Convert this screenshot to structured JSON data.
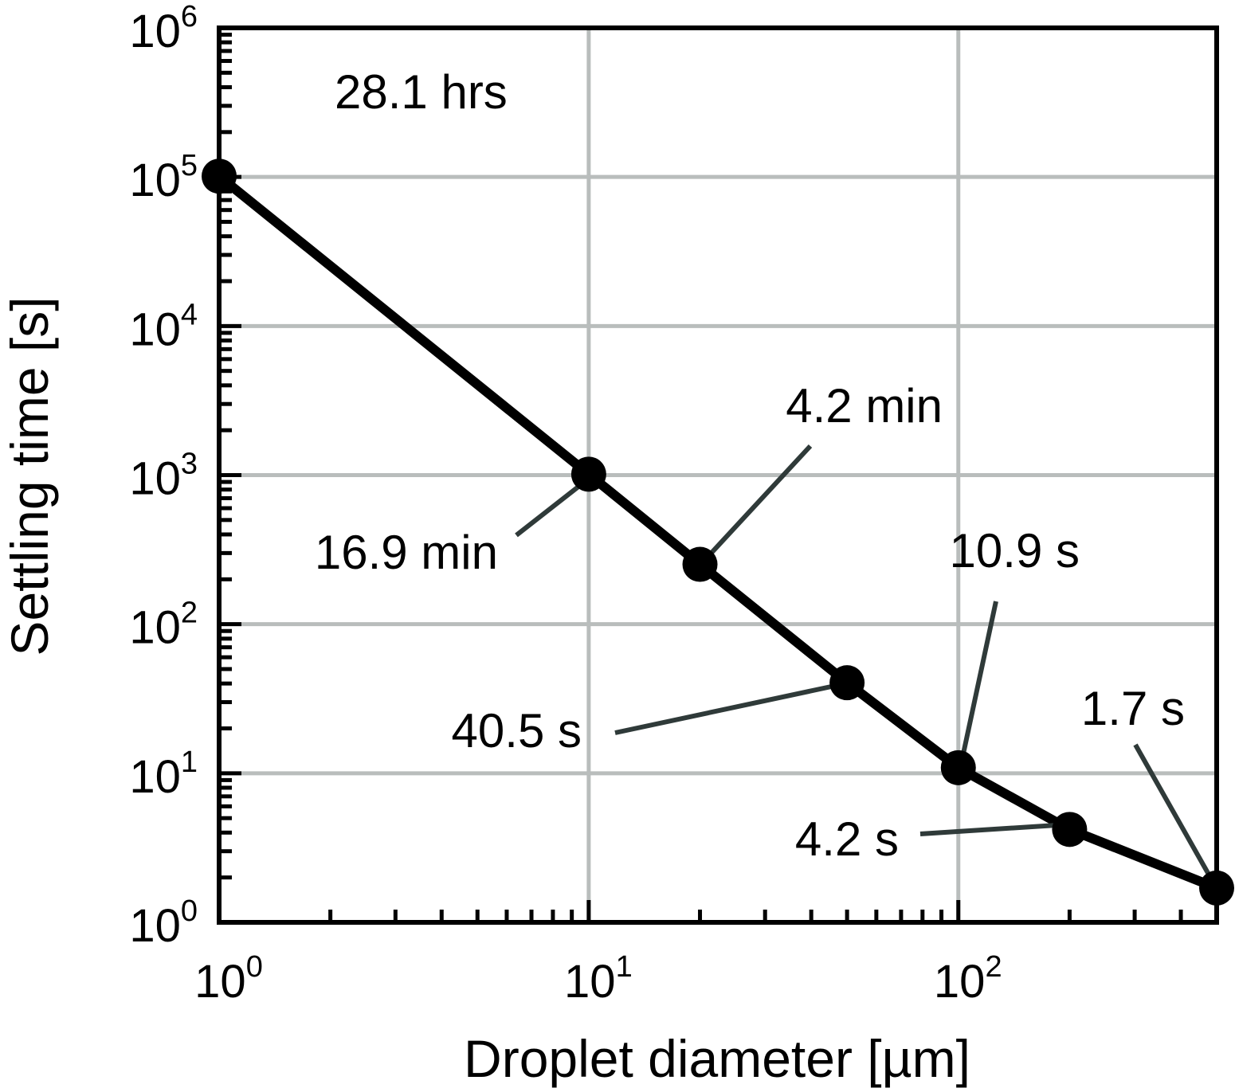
{
  "chart_data": {
    "type": "line",
    "xscale": "log",
    "yscale": "log",
    "xlabel": "Droplet diameter [µm]",
    "ylabel": "Settling time [s]",
    "xlim": [
      1,
      500
    ],
    "ylim": [
      1,
      1000000
    ],
    "grid": true,
    "x_ticks": [
      {
        "base": "10",
        "exp": "0",
        "value": 1
      },
      {
        "base": "10",
        "exp": "1",
        "value": 10
      },
      {
        "base": "10",
        "exp": "2",
        "value": 100
      }
    ],
    "y_ticks": [
      {
        "base": "10",
        "exp": "0",
        "value": 1
      },
      {
        "base": "10",
        "exp": "1",
        "value": 10
      },
      {
        "base": "10",
        "exp": "2",
        "value": 100
      },
      {
        "base": "10",
        "exp": "3",
        "value": 1000
      },
      {
        "base": "10",
        "exp": "4",
        "value": 10000
      },
      {
        "base": "10",
        "exp": "5",
        "value": 100000
      },
      {
        "base": "10",
        "exp": "6",
        "value": 1000000
      }
    ],
    "series": [
      {
        "x": [
          1,
          10,
          20,
          50,
          100,
          200,
          500
        ],
        "y": [
          101160,
          1014,
          252,
          40.5,
          10.9,
          4.2,
          1.7
        ]
      }
    ],
    "annotations": [
      {
        "text": "28.1 hrs",
        "x": 1,
        "y": 101160,
        "leader": false
      },
      {
        "text": "16.9 min",
        "x": 10,
        "y": 1014,
        "leader": true
      },
      {
        "text": "4.2 min",
        "x": 20,
        "y": 252,
        "leader": true
      },
      {
        "text": "40.5 s",
        "x": 50,
        "y": 40.5,
        "leader": true
      },
      {
        "text": "10.9 s",
        "x": 100,
        "y": 10.9,
        "leader": true
      },
      {
        "text": "4.2 s",
        "x": 200,
        "y": 4.2,
        "leader": true
      },
      {
        "text": "1.7 s",
        "x": 500,
        "y": 1.7,
        "leader": true
      }
    ],
    "colors": {
      "line": "#000000",
      "marker": "#000000",
      "grid": "#b9bdbc",
      "leader": "#2f3a39",
      "frame": "#000000"
    }
  }
}
